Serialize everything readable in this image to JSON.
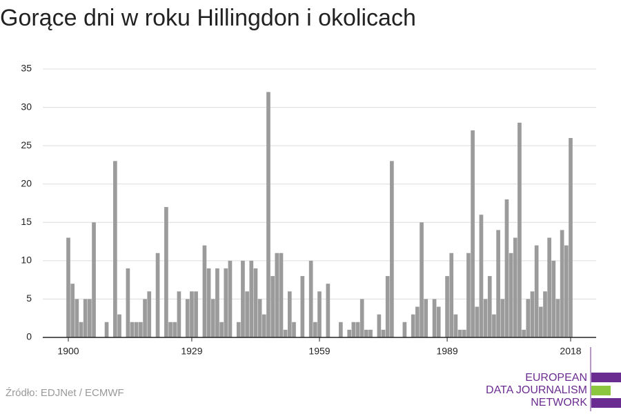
{
  "chart_data": {
    "type": "bar",
    "title": "Gorące dni w roku Hillingdon i okolicach",
    "x": [
      1900,
      1901,
      1902,
      1903,
      1904,
      1905,
      1906,
      1907,
      1908,
      1909,
      1910,
      1911,
      1912,
      1913,
      1914,
      1915,
      1916,
      1917,
      1918,
      1919,
      1920,
      1921,
      1922,
      1923,
      1924,
      1925,
      1926,
      1927,
      1928,
      1929,
      1930,
      1931,
      1932,
      1933,
      1934,
      1935,
      1936,
      1937,
      1938,
      1939,
      1940,
      1941,
      1942,
      1943,
      1944,
      1945,
      1946,
      1947,
      1948,
      1949,
      1950,
      1951,
      1952,
      1953,
      1954,
      1955,
      1956,
      1957,
      1958,
      1959,
      1960,
      1961,
      1962,
      1963,
      1964,
      1965,
      1966,
      1967,
      1968,
      1969,
      1970,
      1971,
      1972,
      1973,
      1974,
      1975,
      1976,
      1977,
      1978,
      1979,
      1980,
      1981,
      1982,
      1983,
      1984,
      1985,
      1986,
      1987,
      1988,
      1989,
      1990,
      1991,
      1992,
      1993,
      1994,
      1995,
      1996,
      1997,
      1998,
      1999,
      2000,
      2001,
      2002,
      2003,
      2004,
      2005,
      2006,
      2007,
      2008,
      2009,
      2010,
      2011,
      2012,
      2013,
      2014,
      2015,
      2016,
      2017,
      2018
    ],
    "values": [
      13,
      7,
      5,
      2,
      5,
      5,
      15,
      0,
      0,
      2,
      0,
      23,
      3,
      0,
      9,
      2,
      2,
      2,
      5,
      6,
      0,
      11,
      0,
      17,
      2,
      2,
      6,
      0,
      5,
      6,
      6,
      0,
      12,
      9,
      5,
      9,
      2,
      9,
      10,
      0,
      2,
      10,
      6,
      10,
      9,
      5,
      3,
      32,
      8,
      11,
      11,
      1,
      6,
      2,
      0,
      8,
      0,
      10,
      2,
      6,
      0,
      7,
      0,
      0,
      2,
      0,
      1,
      2,
      2,
      5,
      1,
      1,
      0,
      3,
      1,
      8,
      23,
      0,
      0,
      2,
      0,
      3,
      4,
      15,
      5,
      0,
      5,
      4,
      0,
      8,
      11,
      3,
      1,
      1,
      11,
      27,
      4,
      16,
      5,
      8,
      3,
      14,
      5,
      18,
      11,
      13,
      28,
      1,
      5,
      6,
      12,
      4,
      6,
      13,
      10,
      5,
      14,
      12,
      26
    ],
    "color": "#9b9b9b",
    "xlim": [
      1894,
      2024
    ],
    "xticks": [
      1900,
      1929,
      1959,
      1989,
      2018
    ],
    "ylim": [
      0,
      35
    ],
    "yticks": [
      0,
      5,
      10,
      15,
      20,
      25,
      30,
      35
    ],
    "grid": true,
    "source": "Źródło: EDJNet / ECMWF"
  },
  "logo": {
    "lines": [
      "EUROPEAN",
      "DATA JOURNALISM",
      "NETWORK"
    ]
  }
}
